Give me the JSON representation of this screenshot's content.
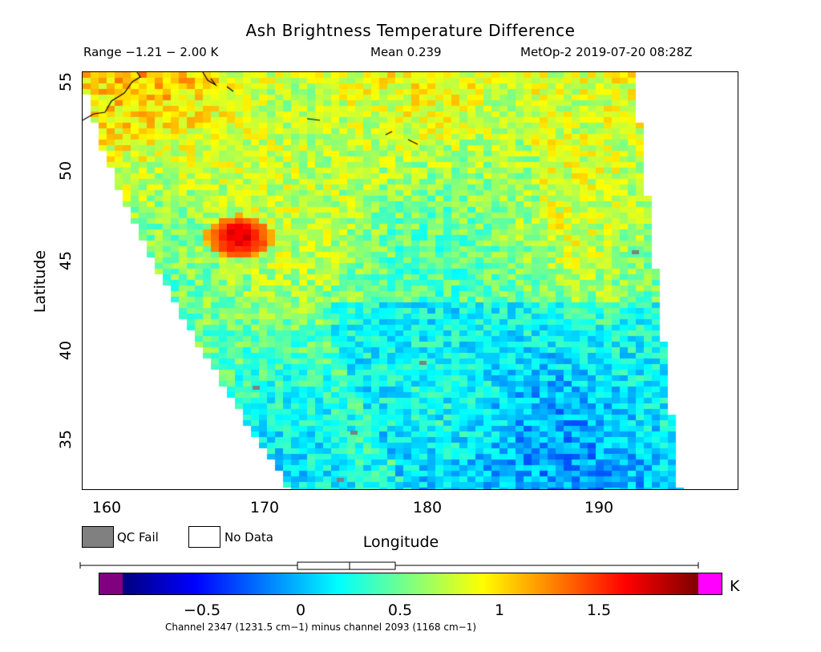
{
  "header": {
    "title": "Ash Brightness Temperature Difference",
    "range": "Range −1.21 − 2.00 K",
    "mean": "Mean 0.239",
    "satellite": "MetOp-2 2019-07-20 08:28Z"
  },
  "axes": {
    "xlabel": "Longitude",
    "ylabel": "Latitude",
    "x_ticks": [
      "160",
      "170",
      "180",
      "190"
    ],
    "y_ticks": [
      "55",
      "50",
      "45",
      "40",
      "35"
    ],
    "xlim": [
      158.5,
      198.5
    ],
    "ylim": [
      32.2,
      55.5
    ]
  },
  "legend": {
    "qc_fail": "QC Fail",
    "no_data": "No Data",
    "qc_color": "#808080",
    "no_data_color": "#ffffff"
  },
  "colorbar": {
    "unit": "K",
    "ticks": [
      "−0.5",
      "0",
      "0.5",
      "1",
      "1.5"
    ],
    "tick_values": [
      -0.5,
      0,
      0.5,
      1,
      1.5
    ],
    "range": [
      -1.2,
      2.0
    ],
    "under_color": "#800080",
    "over_color": "#ff00ff",
    "colormap": "jet"
  },
  "footer": {
    "caption": "Channel 2347 (1231.5 cm−1) minus channel 2093 (1168 cm−1)"
  },
  "map": {
    "feature": "ash plume",
    "plume_center_lon": 168,
    "plume_center_lat": 46.3,
    "plume_peak_value": 1.7
  }
}
